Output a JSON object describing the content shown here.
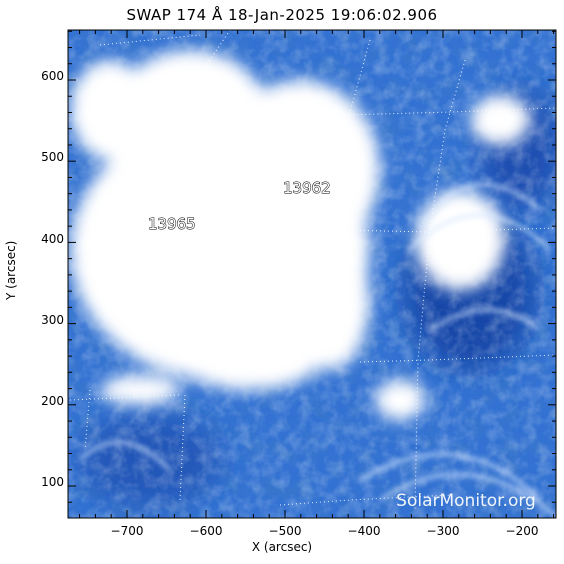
{
  "title": "SWAP 174 Å 18-Jan-2025 19:06:02.906",
  "xlabel": "X (arcsec)",
  "ylabel": "Y (arcsec)",
  "watermark": "SolarMonitor.org",
  "x_ticks": [
    "−700",
    "−600",
    "−500",
    "−400",
    "−300",
    "−200"
  ],
  "y_ticks": [
    "100",
    "200",
    "300",
    "400",
    "500",
    "600"
  ],
  "regions": [
    {
      "label": "13965"
    },
    {
      "label": "13962"
    }
  ],
  "colors": {
    "background": "#2a66c7",
    "bright": "#ffffff",
    "deep": "#0f3fa0",
    "grid": "#ffffff"
  }
}
